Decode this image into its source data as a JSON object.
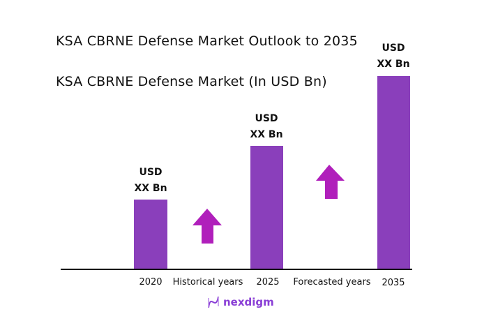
{
  "chart_data": {
    "type": "bar",
    "title": "KSA CBRNE Defense Market Outlook to 2035",
    "subtitle": "KSA CBRNE Defense Market (In USD Bn)",
    "categories": [
      "2020",
      "2025",
      "2035"
    ],
    "data_labels": [
      {
        "line1": "USD",
        "line2": "XX Bn"
      },
      {
        "line1": "USD",
        "line2": "XX Bn"
      },
      {
        "line1": "USD",
        "line2": "XX Bn"
      }
    ],
    "annotations": [
      "Historical years",
      "Forecasted years"
    ],
    "grid": false,
    "bar_color": "#8a3fbb",
    "arrow_color": "#b01fbb",
    "arrow_icon": "up-arrow-icon"
  },
  "logo": {
    "text": "nexdigm"
  }
}
